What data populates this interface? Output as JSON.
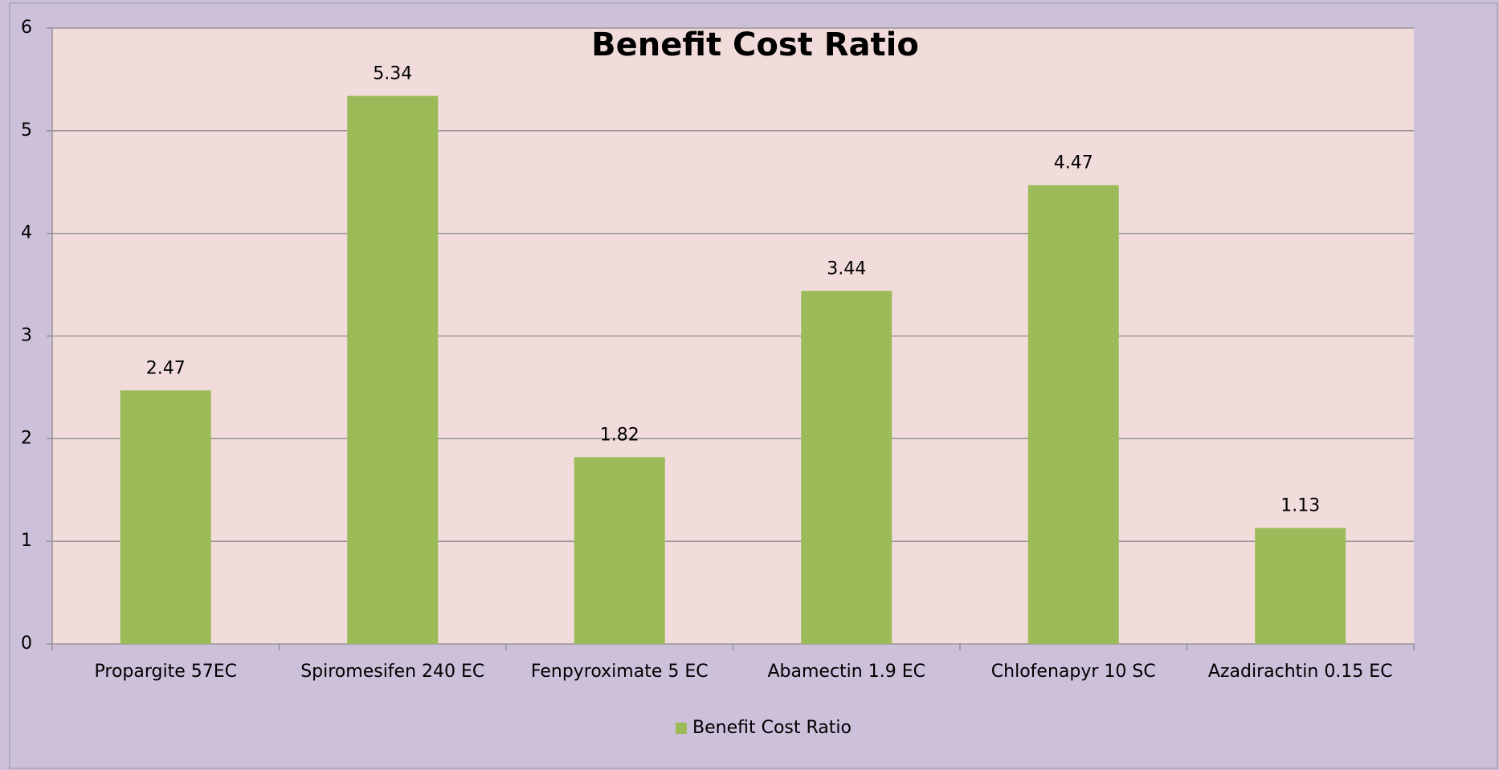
{
  "chart_data": {
    "type": "bar",
    "title": "Benefit Cost Ratio",
    "categories": [
      "Propargite 57EC",
      "Spiromesifen 240 EC",
      "Fenpyroximate 5 EC",
      "Abamectin 1.9 EC",
      "Chlofenapyr 10 SC",
      "Azadirachtin 0.15 EC"
    ],
    "series": [
      {
        "name": "Benefit Cost Ratio",
        "color": "#9bbb59",
        "values": [
          2.47,
          5.34,
          1.82,
          3.44,
          4.47,
          1.13
        ]
      }
    ],
    "ylim": [
      0,
      6
    ],
    "yticks": [
      0,
      1,
      2,
      3,
      4,
      5,
      6
    ],
    "grid": true,
    "legend": "bottom"
  }
}
